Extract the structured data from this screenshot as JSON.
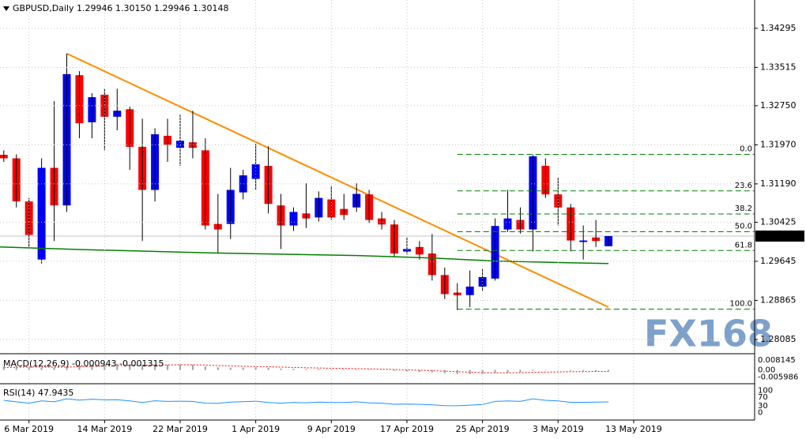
{
  "chart_data": {
    "type": "candlestick",
    "title": "GBPUSD,Daily  1.29946 1.30150 1.29946 1.30148",
    "watermark": "FX168",
    "up_color": "#0000ff",
    "down_color": "#ff0000",
    "open": [
      1.3177,
      1.317,
      1.3084,
      1.2968,
      1.3151,
      1.3076,
      1.3336,
      1.3242,
      1.3297,
      1.3253,
      1.3268,
      1.3193,
      1.3107,
      1.3215,
      1.3191,
      1.3202,
      1.3186,
      1.3039,
      1.3039,
      1.3102,
      1.3129,
      1.3155,
      1.3076,
      1.3036,
      1.306,
      1.3052,
      1.3088,
      1.3069,
      1.3072,
      1.3098,
      1.305,
      1.3038,
      1.2984,
      1.2993,
      1.298,
      1.2937,
      1.2902,
      1.2897,
      1.2914,
      1.293,
      1.3028,
      1.3047,
      1.3028,
      1.3155,
      1.3098,
      1.3072,
      1.3003,
      1.3012,
      1.29946
    ],
    "high": [
      1.3186,
      1.3178,
      1.3091,
      1.317,
      1.3284,
      1.3379,
      1.3344,
      1.33,
      1.3309,
      1.3309,
      1.3273,
      1.3249,
      1.323,
      1.3249,
      1.3257,
      1.3265,
      1.321,
      1.3099,
      1.3151,
      1.3147,
      1.3199,
      1.3194,
      1.3099,
      1.3072,
      1.312,
      1.3104,
      1.3115,
      1.3099,
      1.312,
      1.3107,
      1.3063,
      1.3047,
      1.3012,
      1.3005,
      1.3019,
      1.2952,
      1.2921,
      1.2946,
      1.2949,
      1.305,
      1.3107,
      1.3072,
      1.3177,
      1.317,
      1.3131,
      1.3079,
      1.3036,
      1.3047,
      1.3015
    ],
    "low": [
      1.3163,
      1.3072,
      1.2993,
      1.296,
      1.3005,
      1.3063,
      1.321,
      1.321,
      1.3186,
      1.3226,
      1.3147,
      1.3005,
      1.3084,
      1.3163,
      1.3155,
      1.317,
      1.3028,
      1.298,
      1.3009,
      1.3088,
      1.3107,
      1.306,
      1.2989,
      1.3025,
      1.3031,
      1.3044,
      1.3047,
      1.3047,
      1.3063,
      1.3041,
      1.3028,
      1.2973,
      1.2978,
      1.2968,
      1.2926,
      1.2889,
      1.2867,
      1.2873,
      1.2905,
      1.2926,
      1.3023,
      1.302,
      1.2984,
      1.3091,
      1.3036,
      1.2984,
      1.2968,
      1.2993,
      1.29946
    ],
    "close": [
      1.317,
      1.3084,
      1.3017,
      1.3151,
      1.3076,
      1.3338,
      1.324,
      1.3292,
      1.3253,
      1.3265,
      1.3193,
      1.3107,
      1.3218,
      1.3197,
      1.3205,
      1.3191,
      1.3036,
      1.3028,
      1.3107,
      1.3136,
      1.3158,
      1.3079,
      1.3036,
      1.3063,
      1.305,
      1.3091,
      1.3052,
      1.3057,
      1.3099,
      1.3047,
      1.3038,
      1.298,
      1.2989,
      1.2978,
      1.2937,
      1.2899,
      1.2897,
      1.2914,
      1.2933,
      1.3035,
      1.305,
      1.3028,
      1.3174,
      1.3098,
      1.3072,
      1.3006,
      1.3006,
      1.3005,
      1.30148
    ],
    "xlim": [
      -0.3,
      59.6
    ],
    "xticks": [
      {
        "value": 2,
        "label": "6 Mar 2019"
      },
      {
        "value": 8,
        "label": "14 Mar 2019"
      },
      {
        "value": 14,
        "label": "22 Mar 2019"
      },
      {
        "value": 20,
        "label": "1 Apr 2019"
      },
      {
        "value": 26,
        "label": "9 Apr 2019"
      },
      {
        "value": 32,
        "label": "17 Apr 2019"
      },
      {
        "value": 38,
        "label": "25 Apr 2019"
      },
      {
        "value": 44,
        "label": "3 May 2019"
      },
      {
        "value": 50,
        "label": "13 May 2019"
      }
    ],
    "ylim": [
      1.278,
      1.3486
    ],
    "yticks": [
      1.34295,
      1.33515,
      {
        "value": 1.3275,
        "label": "1.32750"
      },
      {
        "value": 1.3197,
        "label": "1.31970"
      },
      {
        "value": 1.3119,
        "label": "1.31190"
      },
      1.30425,
      1.29645,
      1.28865,
      1.28085
    ],
    "grid": true,
    "trendline": {
      "color": "#ff8c00",
      "x": [
        5,
        48
      ],
      "y": [
        1.3379,
        1.2873
      ]
    },
    "ma": {
      "color": "#008000",
      "x": [
        -0.3,
        6,
        17,
        28,
        34,
        39,
        44,
        48
      ],
      "y": [
        1.2993,
        1.2988,
        1.2981,
        1.2976,
        1.2971,
        1.2965,
        1.2962,
        1.296
      ]
    },
    "fib": {
      "color": "#008000",
      "start": 36,
      "levels": [
        {
          "label": "0.0",
          "price": 1.3178
        },
        {
          "label": "23.6",
          "price": 1.3105
        },
        {
          "label": "38.2",
          "price": 1.3059
        },
        {
          "label": "50.0",
          "price": 1.30235
        },
        {
          "label": "61.8",
          "price": 1.2986
        },
        {
          "label": "100.0",
          "price": 1.2869
        }
      ]
    },
    "macd": {
      "label": "MACD(12,26,9) -0.000943 -0.001315",
      "ylim": [
        -0.0115,
        0.0129
      ],
      "yticks": [
        0.008145,
        {
          "value": 0,
          "label": "0.00"
        },
        -0.005986
      ],
      "hist_color": "#a0a0a0",
      "signal_color": "#ff0000",
      "histogram": [
        0.003,
        0.003,
        0.0025,
        0.002,
        0.002,
        0.003,
        0.004,
        0.0045,
        0.005,
        0.0052,
        0.005,
        0.0045,
        0.0045,
        0.0045,
        0.0045,
        0.0044,
        0.003,
        0.0022,
        0.002,
        0.002,
        0.0022,
        0.0018,
        0.0012,
        0.001,
        0.0008,
        0.0008,
        0.0006,
        0.0005,
        0.0005,
        0.0003,
        0,
        -0.0008,
        -0.0012,
        -0.0016,
        -0.002,
        -0.0028,
        -0.0034,
        -0.0036,
        -0.0036,
        -0.0028,
        -0.0022,
        -0.0018,
        -0.0008,
        -0.0004,
        -0.0002,
        -0.0006,
        -0.0008,
        -0.0009,
        -0.000943
      ],
      "signal": [
        0.002,
        0.0022,
        0.0024,
        0.0024,
        0.0023,
        0.0024,
        0.0027,
        0.003,
        0.0034,
        0.0037,
        0.0039,
        0.004,
        0.0041,
        0.0042,
        0.0043,
        0.0043,
        0.0041,
        0.0037,
        0.0034,
        0.0031,
        0.0029,
        0.0027,
        0.0024,
        0.0021,
        0.0018,
        0.0016,
        0.0014,
        0.0012,
        0.001,
        0.0009,
        0.0007,
        0.0004,
        0.0001,
        -0.0002,
        -0.0006,
        -0.001,
        -0.0015,
        -0.0019,
        -0.0022,
        -0.0024,
        -0.0024,
        -0.0023,
        -0.002,
        -0.0018,
        -0.0016,
        -0.0015,
        -0.0014,
        -0.0013,
        -0.001315
      ]
    },
    "rsi": {
      "label": "RSI(14) 47.9435",
      "ylim": [
        -35,
        127
      ],
      "yticks": [
        100,
        70,
        30,
        0
      ],
      "color": "#1e90ff",
      "values": [
        55,
        48,
        42,
        52,
        48,
        62,
        56,
        60,
        57,
        58,
        52,
        45,
        53,
        50,
        51,
        50,
        42,
        41,
        47,
        49,
        51,
        45,
        42,
        45,
        44,
        47,
        45,
        45,
        48,
        43,
        42,
        37,
        38,
        37,
        34,
        31,
        30,
        33,
        36,
        50,
        52,
        50,
        62,
        55,
        52,
        46,
        46,
        47,
        47.9435
      ]
    }
  }
}
